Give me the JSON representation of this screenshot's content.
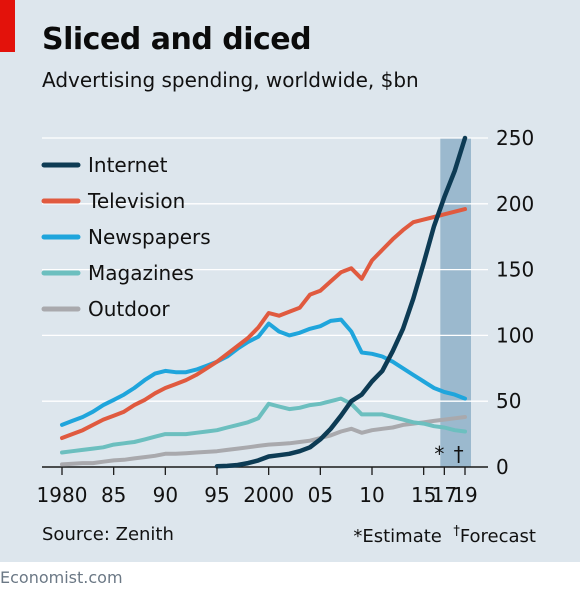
{
  "header": {
    "title": "Sliced and diced",
    "subtitle": "Advertising spending, worldwide, $bn"
  },
  "footer": {
    "source": "Source: Zenith",
    "estimate_note": "*Estimate",
    "forecast_dagger": "†",
    "forecast_label": "Forecast",
    "brand": "Economist.com"
  },
  "colors": {
    "background": "#dde6ed",
    "internet": "#0d3b54",
    "television": "#e05a3f",
    "newspapers": "#1fa5dc",
    "magazines": "#6cbfbf",
    "outdoor": "#a9a9ad",
    "forecast_band": "#8fb0c8",
    "accent_red": "#e3120b"
  },
  "chart_data": {
    "type": "line",
    "xlim": [
      1980,
      2019
    ],
    "ylim": [
      0,
      250
    ],
    "y_ticks": [
      0,
      50,
      100,
      150,
      200,
      250
    ],
    "y_axis_position": "right",
    "x_ticks": [
      {
        "value": 1980,
        "label": "1980"
      },
      {
        "value": 1985,
        "label": "85"
      },
      {
        "value": 1990,
        "label": "90"
      },
      {
        "value": 1995,
        "label": "95"
      },
      {
        "value": 2000,
        "label": "2000"
      },
      {
        "value": 2005,
        "label": "05"
      },
      {
        "value": 2010,
        "label": "10"
      },
      {
        "value": 2015,
        "label": "15"
      },
      {
        "value": 2017,
        "label": "17"
      },
      {
        "value": 2019,
        "label": "19"
      }
    ],
    "grid": true,
    "legend_position": "top-left",
    "shaded_region": {
      "from": 2017,
      "to": 2019
    },
    "markers": [
      {
        "x": 2017,
        "label": "*"
      },
      {
        "x": 2018,
        "label": "†"
      }
    ],
    "series": [
      {
        "name": "Internet",
        "color_key": "internet",
        "x": [
          1995,
          1996,
          1997,
          1998,
          1999,
          2000,
          2001,
          2002,
          2003,
          2004,
          2005,
          2006,
          2007,
          2008,
          2009,
          2010,
          2011,
          2012,
          2013,
          2014,
          2015,
          2016,
          2017,
          2018,
          2019
        ],
        "values": [
          0.5,
          0.8,
          1.5,
          3,
          5,
          8,
          9,
          10,
          12,
          15,
          21,
          29,
          39,
          50,
          55,
          65,
          73,
          88,
          105,
          128,
          155,
          183,
          205,
          225,
          250
        ]
      },
      {
        "name": "Television",
        "color_key": "television",
        "x": [
          1980,
          1981,
          1982,
          1983,
          1984,
          1985,
          1986,
          1987,
          1988,
          1989,
          1990,
          1991,
          1992,
          1993,
          1994,
          1995,
          1996,
          1997,
          1998,
          1999,
          2000,
          2001,
          2002,
          2003,
          2004,
          2005,
          2006,
          2007,
          2008,
          2009,
          2010,
          2011,
          2012,
          2013,
          2014,
          2015,
          2016,
          2017,
          2018,
          2019
        ],
        "values": [
          22,
          25,
          28,
          32,
          36,
          39,
          42,
          47,
          51,
          56,
          60,
          63,
          66,
          70,
          75,
          80,
          86,
          92,
          98,
          106,
          117,
          115,
          118,
          121,
          131,
          134,
          141,
          148,
          151,
          143,
          157,
          165,
          173,
          180,
          186,
          188,
          190,
          192,
          194,
          196
        ]
      },
      {
        "name": "Newspapers",
        "color_key": "newspapers",
        "x": [
          1980,
          1981,
          1982,
          1983,
          1984,
          1985,
          1986,
          1987,
          1988,
          1989,
          1990,
          1991,
          1992,
          1993,
          1994,
          1995,
          1996,
          1997,
          1998,
          1999,
          2000,
          2001,
          2002,
          2003,
          2004,
          2005,
          2006,
          2007,
          2008,
          2009,
          2010,
          2011,
          2012,
          2013,
          2014,
          2015,
          2016,
          2017,
          2018,
          2019
        ],
        "values": [
          32,
          35,
          38,
          42,
          47,
          51,
          55,
          60,
          66,
          71,
          73,
          72,
          72,
          74,
          77,
          80,
          84,
          90,
          95,
          99,
          109,
          103,
          100,
          102,
          105,
          107,
          111,
          112,
          103,
          87,
          86,
          84,
          80,
          75,
          70,
          65,
          60,
          57,
          55,
          52
        ]
      },
      {
        "name": "Magazines",
        "color_key": "magazines",
        "x": [
          1980,
          1981,
          1982,
          1983,
          1984,
          1985,
          1986,
          1987,
          1988,
          1989,
          1990,
          1991,
          1992,
          1993,
          1994,
          1995,
          1996,
          1997,
          1998,
          1999,
          2000,
          2001,
          2002,
          2003,
          2004,
          2005,
          2006,
          2007,
          2008,
          2009,
          2010,
          2011,
          2012,
          2013,
          2014,
          2015,
          2016,
          2017,
          2018,
          2019
        ],
        "values": [
          11,
          12,
          13,
          14,
          15,
          17,
          18,
          19,
          21,
          23,
          25,
          25,
          25,
          26,
          27,
          28,
          30,
          32,
          34,
          37,
          48,
          46,
          44,
          45,
          47,
          48,
          50,
          52,
          48,
          40,
          40,
          40,
          38,
          36,
          34,
          33,
          31,
          30,
          28,
          27
        ]
      },
      {
        "name": "Outdoor",
        "color_key": "outdoor",
        "x": [
          1980,
          1981,
          1982,
          1983,
          1984,
          1985,
          1986,
          1987,
          1988,
          1989,
          1990,
          1991,
          1992,
          1993,
          1994,
          1995,
          1996,
          1997,
          1998,
          1999,
          2000,
          2001,
          2002,
          2003,
          2004,
          2005,
          2006,
          2007,
          2008,
          2009,
          2010,
          2011,
          2012,
          2013,
          2014,
          2015,
          2016,
          2017,
          2018,
          2019
        ],
        "values": [
          2,
          2.5,
          3,
          3,
          4,
          5,
          5.5,
          6.5,
          7.5,
          8.5,
          10,
          10,
          10.5,
          11,
          11.5,
          12,
          13,
          14,
          15,
          16,
          17,
          17.5,
          18,
          19,
          20,
          22,
          24,
          27,
          29,
          26,
          28,
          29,
          30,
          32,
          33,
          34,
          35,
          36,
          37,
          38
        ]
      }
    ]
  }
}
